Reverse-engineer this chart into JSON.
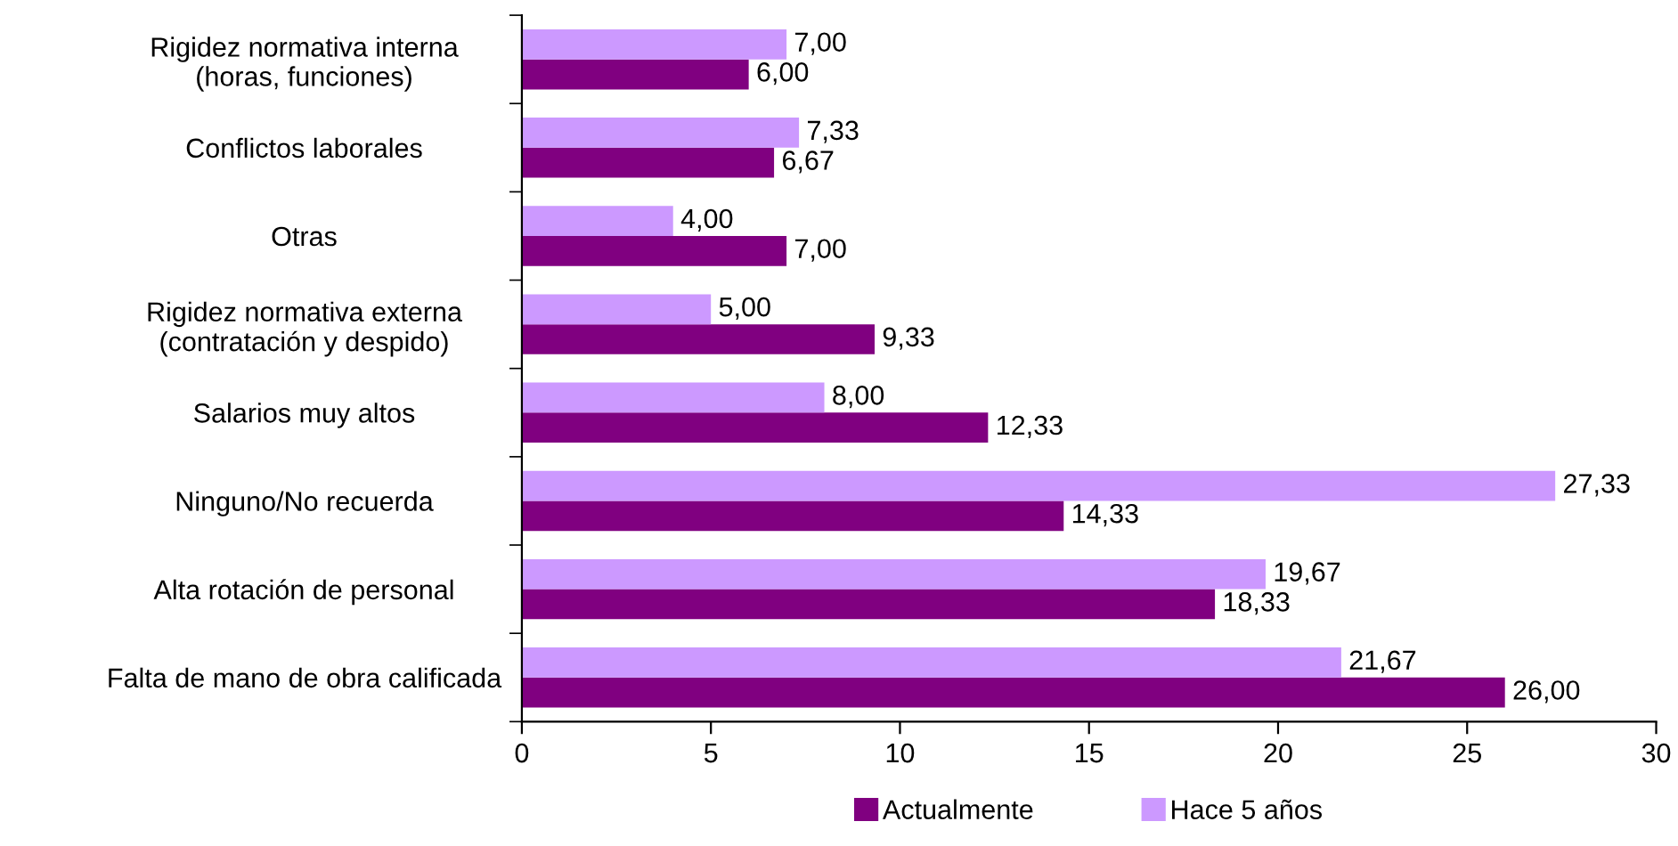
{
  "chart_data": {
    "type": "bar",
    "orientation": "horizontal",
    "categories": [
      "Rigidez normativa interna\n(horas, funciones)",
      "Conflictos laborales",
      "Otras",
      "Rigidez normativa externa\n(contratación y despido)",
      "Salarios muy altos",
      "Ninguno/No recuerda",
      "Alta rotación de personal",
      "Falta de mano de obra calificada"
    ],
    "series": [
      {
        "name": "Actualmente",
        "color": "#800080",
        "values": [
          6.0,
          6.67,
          7.0,
          9.33,
          12.33,
          14.33,
          18.33,
          26.0
        ],
        "value_labels": [
          "6,00",
          "6,67",
          "7,00",
          "9,33",
          "12,33",
          "14,33",
          "18,33",
          "26,00"
        ]
      },
      {
        "name": "Hace 5 años",
        "color": "#cc99ff",
        "values": [
          7.0,
          7.33,
          4.0,
          5.0,
          8.0,
          27.33,
          19.67,
          21.67
        ],
        "value_labels": [
          "7,00",
          "7,33",
          "4,00",
          "5,00",
          "8,00",
          "27,33",
          "19,67",
          "21,67"
        ]
      }
    ],
    "xlim": [
      0,
      30
    ],
    "xticks": [
      0,
      5,
      10,
      15,
      20,
      25,
      30
    ],
    "grid": false,
    "legend": "bottom"
  }
}
